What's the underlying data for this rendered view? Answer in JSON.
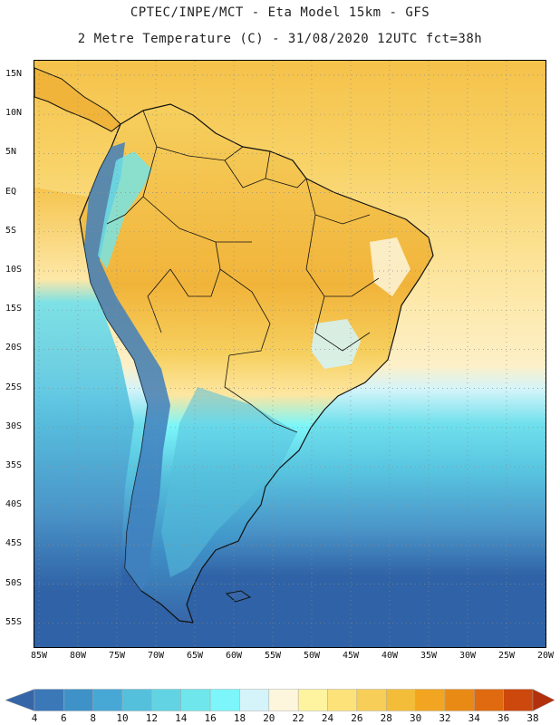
{
  "title_line_1": "CPTEC/INPE/MCT -  Eta Model 15km - GFS",
  "title_line_2": "2 Metre Temperature (C) - 31/08/2020 12UTC fct=38h",
  "lat_labels": [
    "15N",
    "10N",
    "5N",
    "EQ",
    "5S",
    "10S",
    "15S",
    "20S",
    "25S",
    "30S",
    "35S",
    "40S",
    "45S",
    "50S",
    "55S"
  ],
  "lon_labels": [
    "85W",
    "80W",
    "75W",
    "70W",
    "65W",
    "60W",
    "55W",
    "50W",
    "45W",
    "40W",
    "35W",
    "30W",
    "25W",
    "20W"
  ],
  "colorbar": {
    "ticks": [
      "4",
      "6",
      "8",
      "10",
      "12",
      "14",
      "16",
      "18",
      "20",
      "22",
      "24",
      "26",
      "28",
      "30",
      "32",
      "34",
      "36",
      "38"
    ],
    "colors": [
      "#3766a8",
      "#3a78b8",
      "#3f92c8",
      "#48a8d5",
      "#55c0dc",
      "#62d3e2",
      "#6fe6ec",
      "#7cf6fa",
      "#d4f4fa",
      "#fdf6dc",
      "#fef4a0",
      "#fde27a",
      "#f7cf58",
      "#f3bd3a",
      "#f1a520",
      "#e98a15",
      "#df6a0f",
      "#cc480c",
      "#b3300c"
    ]
  },
  "map_colors": {
    "ocean_cold": "#2f62a6",
    "ocean_mid": "#4a94c8",
    "ocean_cool": "#58c4e0",
    "ocean_light": "#6fe0ec",
    "ocean_pale": "#d4f4fa",
    "ocean_warm": "#fdf0c8",
    "ocean_yellow": "#f8d368",
    "ocean_tropic": "#f5c24a",
    "land_hot": "#f1b43a",
    "land_warm": "#f6cf5e",
    "land_mild": "#fde6a0",
    "andes": "#3f7fbd",
    "coastline": "#111111"
  }
}
